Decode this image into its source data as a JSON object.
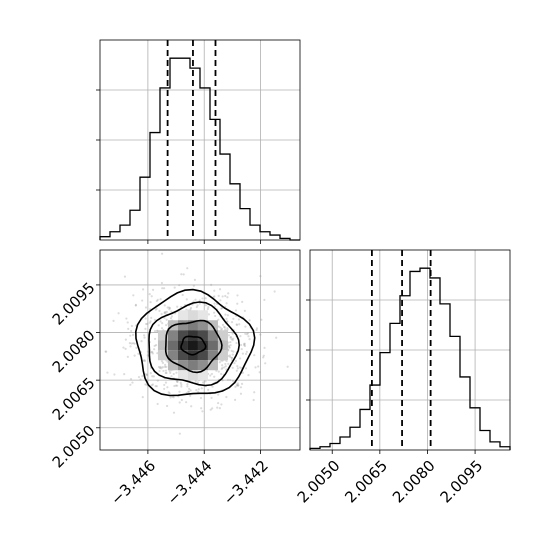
{
  "chart_data": {
    "type": "corner",
    "grid": true,
    "quantile_line_style": "dashed",
    "panels": [
      {
        "panel": "histogram-x",
        "type": "bar",
        "x_range": [
          -3.4477,
          -3.4406
        ],
        "x_ticks": [
          -3.446,
          -3.444,
          -3.442
        ],
        "bins": 20,
        "counts": [
          2,
          5,
          9,
          18,
          38,
          65,
          92,
          110,
          110,
          104,
          92,
          73,
          52,
          34,
          19,
          9,
          5,
          3,
          1,
          0
        ],
        "quantiles": [
          -3.4453,
          -3.4444,
          -3.4436
        ]
      },
      {
        "panel": "histogram-y",
        "type": "bar",
        "x_range": [
          2.0043,
          2.0106
        ],
        "x_ticks": [
          2.005,
          2.0065,
          2.008,
          2.0095
        ],
        "x_tick_labels": [
          "2.0050",
          "2.0065",
          "2.0080",
          "2.0095"
        ],
        "bins": 20,
        "counts": [
          1,
          2,
          4,
          8,
          14,
          25,
          40,
          60,
          78,
          95,
          110,
          112,
          106,
          90,
          70,
          45,
          26,
          12,
          5,
          2
        ],
        "quantiles": [
          2.00625,
          2.0072,
          2.0081
        ]
      },
      {
        "panel": "joint-2d",
        "type": "heatmap",
        "x_range": [
          -3.4477,
          -3.4406
        ],
        "y_range": [
          2.0043,
          2.0106
        ],
        "x_ticks": [
          -3.446,
          -3.444,
          -3.442
        ],
        "x_tick_labels": [
          "−3.446",
          "−3.444",
          "−3.442"
        ],
        "y_ticks": [
          2.005,
          2.0065,
          2.008,
          2.0095
        ],
        "y_tick_labels": [
          "2.0050",
          "2.0065",
          "2.0080",
          "2.0095"
        ],
        "center": [
          -3.4444,
          2.0076
        ],
        "contour_levels": 4
      }
    ]
  }
}
